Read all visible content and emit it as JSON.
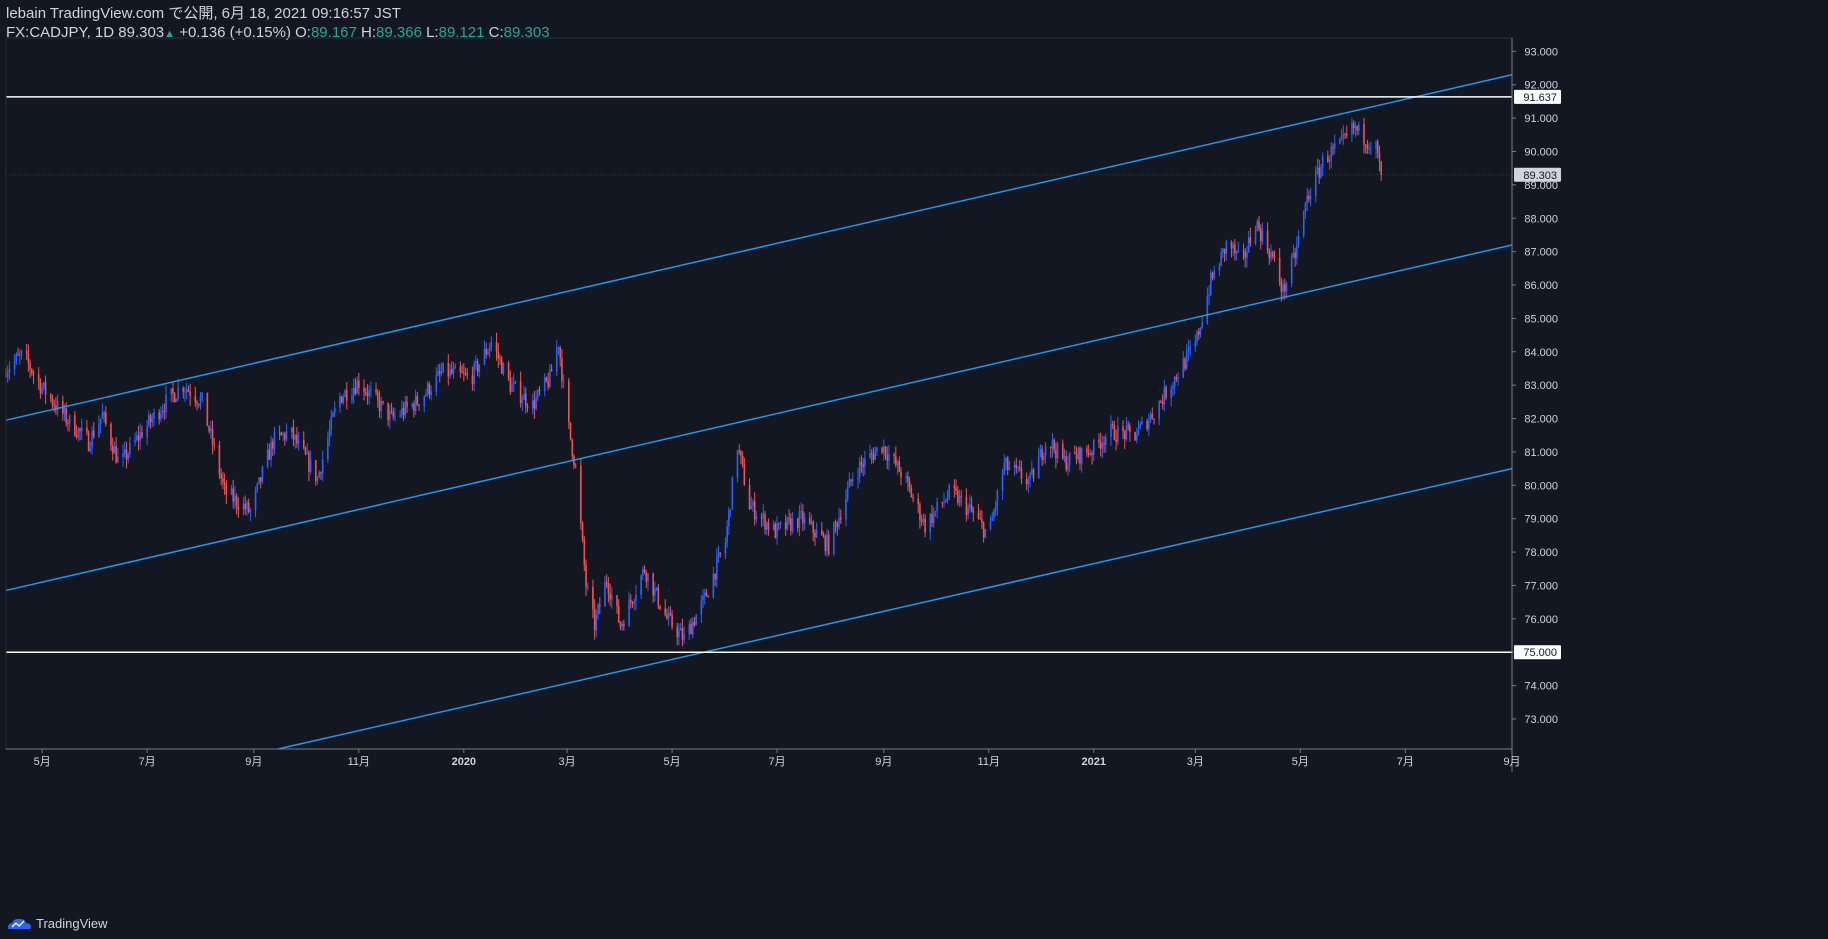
{
  "header": {
    "line1": "lebain TradingView.com で公開, 6月 18, 2021 09:16:57 JST",
    "symbol": "FX:CADJPY, 1D 89.303",
    "change_arrow": "▲",
    "change": "+0.136 (+0.15%)",
    "o_label": "O:",
    "o_value": "89.167",
    "h_label": "H:",
    "h_value": "89.366",
    "l_label": "L:",
    "l_value": "89.121",
    "c_label": "C:",
    "c_value": "89.303"
  },
  "footer": {
    "brand": "TradingView",
    "logo_icon": "tradingview-logo-icon"
  },
  "colors": {
    "background": "#131722",
    "grid": "#2a2e39",
    "up": "#2962ff",
    "down": "#ef5350",
    "channel": "#2196f3",
    "hline": "#ffffff",
    "text": "#d1d4dc",
    "ohlc": "#26a69a"
  },
  "chart_data": {
    "type": "candlestick",
    "symbol": "FX:CADJPY",
    "interval": "1D",
    "x_range": [
      "2019-04-10",
      "2021-09-01"
    ],
    "ylim": [
      72.1,
      93.4
    ],
    "price_ticks": [
      73.0,
      74.0,
      75.0,
      76.0,
      77.0,
      78.0,
      79.0,
      80.0,
      81.0,
      82.0,
      83.0,
      84.0,
      85.0,
      86.0,
      87.0,
      88.0,
      89.0,
      90.0,
      91.0,
      92.0,
      93.0
    ],
    "price_tick_labels": [
      "73.000",
      "74.000",
      "75.000",
      "76.000",
      "77.000",
      "78.000",
      "79.000",
      "80.000",
      "81.000",
      "82.000",
      "83.000",
      "84.000",
      "85.000",
      "86.000",
      "87.000",
      "88.000",
      "89.000",
      "90.000",
      "91.000",
      "92.000",
      "93.000"
    ],
    "time_ticks": [
      {
        "date": "2019-05-01",
        "label": "5月"
      },
      {
        "date": "2019-07-01",
        "label": "7月"
      },
      {
        "date": "2019-09-01",
        "label": "9月"
      },
      {
        "date": "2019-11-01",
        "label": "11月"
      },
      {
        "date": "2020-01-01",
        "label": "2020"
      },
      {
        "date": "2020-03-01",
        "label": "3月"
      },
      {
        "date": "2020-05-01",
        "label": "5月"
      },
      {
        "date": "2020-07-01",
        "label": "7月"
      },
      {
        "date": "2020-09-01",
        "label": "9月"
      },
      {
        "date": "2020-11-01",
        "label": "11月"
      },
      {
        "date": "2021-01-01",
        "label": "2021"
      },
      {
        "date": "2021-03-01",
        "label": "3月"
      },
      {
        "date": "2021-05-01",
        "label": "5月"
      },
      {
        "date": "2021-07-01",
        "label": "7月"
      },
      {
        "date": "2021-09-01",
        "label": "9月"
      }
    ],
    "price_path": [
      [
        "2019-04-10",
        83.5
      ],
      [
        "2019-04-20",
        83.9
      ],
      [
        "2019-04-30",
        83.0
      ],
      [
        "2019-05-15",
        82.0
      ],
      [
        "2019-05-28",
        81.3
      ],
      [
        "2019-06-05",
        82.1
      ],
      [
        "2019-06-15",
        80.6
      ],
      [
        "2019-06-28",
        81.6
      ],
      [
        "2019-07-12",
        82.5
      ],
      [
        "2019-07-22",
        83.0
      ],
      [
        "2019-08-02",
        82.5
      ],
      [
        "2019-08-15",
        79.8
      ],
      [
        "2019-08-30",
        79.2
      ],
      [
        "2019-09-12",
        81.3
      ],
      [
        "2019-09-22",
        81.6
      ],
      [
        "2019-10-08",
        80.2
      ],
      [
        "2019-10-20",
        82.6
      ],
      [
        "2019-11-01",
        83.1
      ],
      [
        "2019-11-20",
        82.0
      ],
      [
        "2019-12-05",
        82.5
      ],
      [
        "2019-12-20",
        83.4
      ],
      [
        "2020-01-05",
        83.2
      ],
      [
        "2020-01-17",
        84.3
      ],
      [
        "2020-01-28",
        83.0
      ],
      [
        "2020-02-10",
        82.4
      ],
      [
        "2020-02-20",
        83.2
      ],
      [
        "2020-02-25",
        84.3
      ],
      [
        "2020-03-01",
        82.0
      ],
      [
        "2020-03-06",
        80.5
      ],
      [
        "2020-03-12",
        77.0
      ],
      [
        "2020-03-17",
        75.8
      ],
      [
        "2020-03-24",
        77.2
      ],
      [
        "2020-04-01",
        75.8
      ],
      [
        "2020-04-15",
        77.5
      ],
      [
        "2020-04-28",
        76.0
      ],
      [
        "2020-05-08",
        75.4
      ],
      [
        "2020-05-20",
        76.6
      ],
      [
        "2020-06-01",
        78.3
      ],
      [
        "2020-06-08",
        81.2
      ],
      [
        "2020-06-15",
        79.4
      ],
      [
        "2020-06-30",
        78.6
      ],
      [
        "2020-07-15",
        79.0
      ],
      [
        "2020-07-31",
        78.2
      ],
      [
        "2020-08-15",
        80.4
      ],
      [
        "2020-08-31",
        81.2
      ],
      [
        "2020-09-12",
        80.3
      ],
      [
        "2020-09-25",
        78.8
      ],
      [
        "2020-10-10",
        79.8
      ],
      [
        "2020-10-22",
        79.2
      ],
      [
        "2020-11-01",
        78.5
      ],
      [
        "2020-11-10",
        80.6
      ],
      [
        "2020-11-25",
        80.1
      ],
      [
        "2020-12-05",
        81.4
      ],
      [
        "2020-12-15",
        80.7
      ],
      [
        "2021-01-01",
        81.1
      ],
      [
        "2021-01-10",
        81.6
      ],
      [
        "2021-01-25",
        81.5
      ],
      [
        "2021-02-05",
        82.2
      ],
      [
        "2021-02-18",
        83.3
      ],
      [
        "2021-03-01",
        84.2
      ],
      [
        "2021-03-10",
        86.1
      ],
      [
        "2021-03-20",
        87.3
      ],
      [
        "2021-03-28",
        86.6
      ],
      [
        "2021-04-05",
        87.9
      ],
      [
        "2021-04-15",
        86.8
      ],
      [
        "2021-04-21",
        85.8
      ],
      [
        "2021-04-28",
        86.9
      ],
      [
        "2021-05-05",
        88.6
      ],
      [
        "2021-05-15",
        89.8
      ],
      [
        "2021-05-25",
        90.2
      ],
      [
        "2021-06-01",
        90.7
      ],
      [
        "2021-06-08",
        90.4
      ],
      [
        "2021-06-14",
        90.1
      ],
      [
        "2021-06-17",
        89.3
      ]
    ],
    "channel_lines": [
      {
        "from": [
          "2019-04-10",
          81.95
        ],
        "to": [
          "2021-09-01",
          92.3
        ]
      },
      {
        "from": [
          "2019-04-10",
          76.85
        ],
        "to": [
          "2021-09-01",
          87.2
        ]
      },
      {
        "from": [
          "2019-09-15",
          72.1
        ],
        "to": [
          "2021-09-01",
          80.5
        ]
      }
    ],
    "horizontal_levels": [
      {
        "price": 91.637,
        "label": "91.637"
      },
      {
        "price": 75.0,
        "label": "75.000"
      }
    ],
    "last_price": {
      "price": 89.303,
      "label": "89.303"
    }
  }
}
